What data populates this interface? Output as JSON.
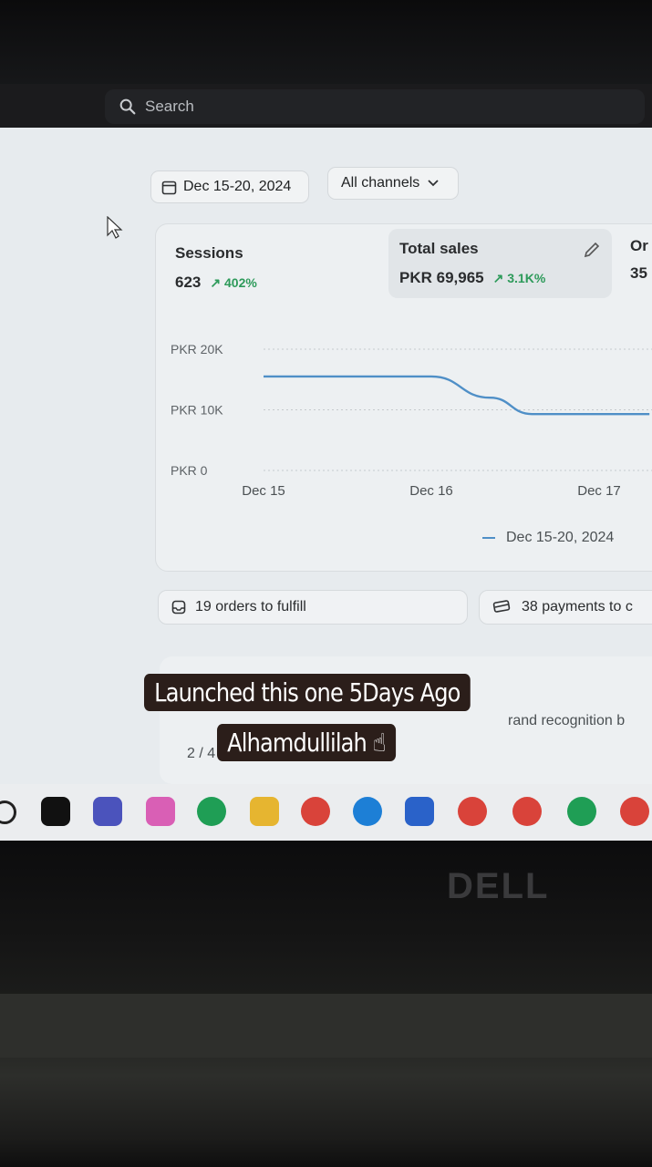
{
  "search": {
    "label": "Search"
  },
  "filters": {
    "date_range": "Dec 15-20, 2024",
    "channels": "All channels"
  },
  "metrics": {
    "sessions": {
      "label": "Sessions",
      "value": "623",
      "delta": "402%"
    },
    "total_sales": {
      "label": "Total sales",
      "value": "PKR 69,965",
      "delta": "3.1K%"
    },
    "orders": {
      "label": "Or",
      "value": "35"
    }
  },
  "chart_data": {
    "type": "line",
    "x": [
      "Dec 15",
      "Dec 16",
      "Dec 17"
    ],
    "y_ticks": [
      "PKR 20K",
      "PKR 10K",
      "PKR 0"
    ],
    "ylim": [
      0,
      20000
    ],
    "series": [
      {
        "name": "Dec 15-20, 2024",
        "points": [
          [
            0,
            15500
          ],
          [
            0.5,
            15500
          ],
          [
            1,
            15500
          ],
          [
            1.35,
            12000
          ],
          [
            1.6,
            9300
          ],
          [
            2,
            9300
          ],
          [
            2.3,
            9300
          ]
        ]
      }
    ],
    "legend": "bottom-right",
    "color": "#4f8fc7"
  },
  "tasks": {
    "orders_to_fulfill": "19 orders to fulfill",
    "payments": "38 payments to c"
  },
  "lower": {
    "pager": "2 / 4",
    "brand_text": "rand recognition b"
  },
  "overlay": {
    "caption_line1": "Launched this one 5Days Ago",
    "caption_line2": "Alhamdullilah ☝"
  },
  "laptop": {
    "brand": "DELL"
  },
  "taskbar": {
    "icons": [
      "search-icon",
      "task-view-icon",
      "teams-icon",
      "copilot-icon",
      "whatsapp-icon",
      "file-explorer-icon",
      "chrome-icon",
      "edge-icon",
      "microsoft-store-icon",
      "chrome-icon",
      "chrome-icon",
      "whatsapp-icon",
      "chrome-icon"
    ]
  }
}
